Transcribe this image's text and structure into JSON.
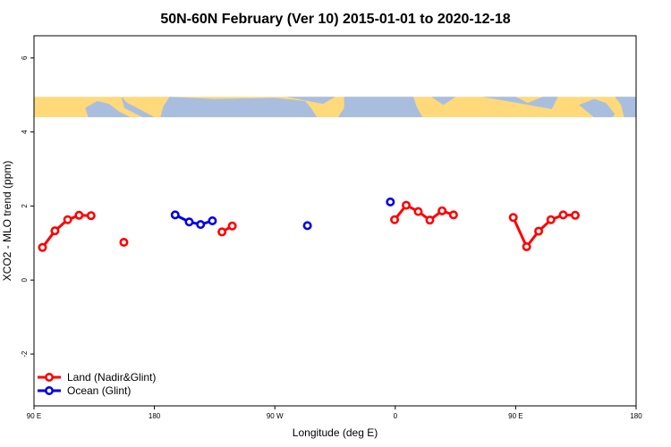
{
  "chart_data": {
    "type": "line",
    "title": "50N-60N February (Ver 10)   2015-01-01 to 2020-12-18",
    "xlabel": "Longitude (deg E)",
    "ylabel": "XCO2 - MLO trend (ppm)",
    "xlim": [
      -90,
      180
    ],
    "ylim": [
      -3.4,
      6.6
    ],
    "x_ticks": [
      {
        "value": -90,
        "label": "90 E"
      },
      {
        "value": -36,
        "label": "180"
      },
      {
        "value": 18,
        "label": "90 W"
      },
      {
        "value": 72,
        "label": "0"
      },
      {
        "value": 126,
        "label": "90 E"
      },
      {
        "value": 180,
        "label": "180"
      }
    ],
    "y_ticks": [
      -2,
      0,
      2,
      4,
      6
    ],
    "map_band": {
      "ymin": 4.4,
      "ymax": 4.95,
      "land_color": "#ffd97a",
      "ocean_color": "#a9bedf"
    },
    "grid": false,
    "legend_position": "bottom-left",
    "series": [
      {
        "name": "Land (Nadir&Glint)",
        "color": "#ff0000",
        "segments": [
          [
            [
              -86.2,
              0.88
            ],
            [
              -80.6,
              1.33
            ],
            [
              -74.9,
              1.63
            ],
            [
              -69.8,
              1.75
            ],
            [
              -64.4,
              1.74
            ]
          ],
          [
            [
              -49.7,
              1.02
            ]
          ],
          [
            [
              -5.7,
              1.3
            ],
            [
              -1.1,
              1.46
            ]
          ],
          [
            [
              71.7,
              1.63
            ],
            [
              76.9,
              2.02
            ],
            [
              82.3,
              1.85
            ],
            [
              87.5,
              1.62
            ],
            [
              93.0,
              1.87
            ],
            [
              98.1,
              1.76
            ]
          ],
          [
            [
              124.9,
              1.69
            ],
            [
              130.9,
              0.9
            ],
            [
              136.3,
              1.32
            ],
            [
              141.8,
              1.63
            ],
            [
              147.3,
              1.76
            ],
            [
              152.7,
              1.75
            ]
          ]
        ]
      },
      {
        "name": "Ocean (Glint)",
        "color": "#0000e6",
        "segments": [
          [
            [
              -26.7,
              1.76
            ],
            [
              -20.4,
              1.57
            ],
            [
              -15.3,
              1.5
            ],
            [
              -10.0,
              1.6
            ]
          ],
          [
            [
              32.6,
              1.47
            ]
          ],
          [
            [
              69.8,
              2.11
            ]
          ]
        ]
      }
    ]
  }
}
